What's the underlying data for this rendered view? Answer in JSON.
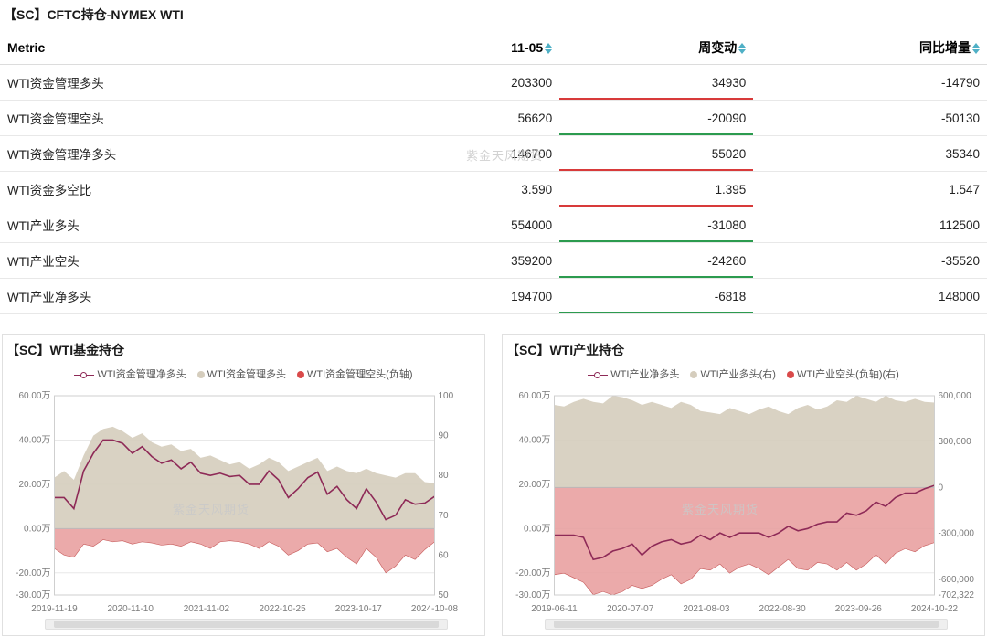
{
  "watermark_text": "紫金天风期货",
  "table": {
    "title": "【SC】CFTC持仓-NYMEX WTI",
    "columns": [
      "Metric",
      "11-05",
      "周变动",
      "同比增量"
    ],
    "sortable_cols": [
      false,
      true,
      true,
      true
    ],
    "rows": [
      {
        "metric": "WTI资金管理多头",
        "v1": "203300",
        "wk": "34930",
        "wk_dir": "red",
        "yoy": "-14790"
      },
      {
        "metric": "WTI资金管理空头",
        "v1": "56620",
        "wk": "-20090",
        "wk_dir": "green",
        "yoy": "-50130"
      },
      {
        "metric": "WTI资金管理净多头",
        "v1": "146700",
        "wk": "55020",
        "wk_dir": "red",
        "yoy": "35340"
      },
      {
        "metric": "WTI资金多空比",
        "v1": "3.590",
        "wk": "1.395",
        "wk_dir": "red",
        "yoy": "1.547"
      },
      {
        "metric": "WTI产业多头",
        "v1": "554000",
        "wk": "-31080",
        "wk_dir": "green",
        "yoy": "112500"
      },
      {
        "metric": "WTI产业空头",
        "v1": "359200",
        "wk": "-24260",
        "wk_dir": "green",
        "yoy": "-35520"
      },
      {
        "metric": "WTI产业净多头",
        "v1": "194700",
        "wk": "-6818",
        "wk_dir": "green",
        "yoy": "148000"
      }
    ]
  },
  "chart1": {
    "title": "【SC】WTI基金持仓",
    "type": "combo-line-area-dual-axis",
    "legend": [
      {
        "label": "WTI资金管理净多头",
        "style": "hollow-circle-line",
        "color": "#8e2a57"
      },
      {
        "label": "WTI资金管理多头",
        "style": "dot",
        "color": "#d5cdbd"
      },
      {
        "label": "WTI资金管理空头(负轴)",
        "style": "dot",
        "color": "#d94a4a"
      }
    ],
    "colors": {
      "net_line": "#8e2a57",
      "long_area": "#d5cdbd",
      "short_area": "#e79b9b",
      "short_area_edge": "#c65a5a",
      "grid": "#e8e8e8",
      "axis_text": "#7a7a7a",
      "bg": "#ffffff"
    },
    "y_left": {
      "min": -300000,
      "max": 600000,
      "ticks": [
        "-30.00万",
        "-20.00万",
        "0.00万",
        "20.00万",
        "40.00万",
        "60.00万"
      ],
      "tick_vals": [
        -300000,
        -200000,
        0,
        200000,
        400000,
        600000
      ]
    },
    "y_right": {
      "min": 50,
      "max": 100,
      "ticks": [
        "50",
        "60",
        "70",
        "80",
        "90",
        "100"
      ],
      "tick_vals": [
        50,
        60,
        70,
        80,
        90,
        100
      ]
    },
    "x_labels": [
      "2019-11-19",
      "2020-11-10",
      "2021-11-02",
      "2022-10-25",
      "2023-10-17",
      "2024-10-08"
    ],
    "series_long_area_yleft": [
      230000,
      260000,
      220000,
      330000,
      420000,
      450000,
      460000,
      440000,
      410000,
      430000,
      390000,
      370000,
      380000,
      350000,
      360000,
      320000,
      330000,
      310000,
      290000,
      300000,
      270000,
      290000,
      320000,
      300000,
      260000,
      280000,
      300000,
      320000,
      260000,
      280000,
      260000,
      250000,
      270000,
      250000,
      240000,
      230000,
      250000,
      250000,
      210000,
      205000
    ],
    "series_short_area_yleft": [
      -90000,
      -120000,
      -130000,
      -70000,
      -80000,
      -50000,
      -60000,
      -55000,
      -70000,
      -60000,
      -65000,
      -75000,
      -70000,
      -80000,
      -60000,
      -70000,
      -90000,
      -60000,
      -55000,
      -60000,
      -70000,
      -90000,
      -60000,
      -80000,
      -120000,
      -100000,
      -70000,
      -65000,
      -105000,
      -90000,
      -130000,
      -160000,
      -90000,
      -130000,
      -200000,
      -170000,
      -120000,
      -140000,
      -95000,
      -60000
    ],
    "series_net_line_yleft": [
      140000,
      140000,
      90000,
      260000,
      340000,
      400000,
      400000,
      385000,
      340000,
      370000,
      325000,
      295000,
      310000,
      270000,
      300000,
      250000,
      240000,
      250000,
      235000,
      240000,
      200000,
      200000,
      260000,
      220000,
      140000,
      180000,
      230000,
      255000,
      155000,
      190000,
      130000,
      90000,
      180000,
      120000,
      40000,
      60000,
      130000,
      110000,
      115000,
      145000
    ],
    "line_width": 1.6,
    "label_fontsize": 10
  },
  "chart2": {
    "title": "【SC】WTI产业持仓",
    "type": "combo-line-area-dual-axis",
    "legend": [
      {
        "label": "WTI产业净多头",
        "style": "hollow-circle-line",
        "color": "#8e2a57"
      },
      {
        "label": "WTI产业多头(右)",
        "style": "dot",
        "color": "#d5cdbd"
      },
      {
        "label": "WTI产业空头(负轴)(右)",
        "style": "dot",
        "color": "#d94a4a"
      }
    ],
    "colors": {
      "net_line": "#8e2a57",
      "long_area": "#d5cdbd",
      "short_area": "#e79b9b",
      "short_area_edge": "#c65a5a",
      "grid": "#e8e8e8",
      "axis_text": "#7a7a7a",
      "bg": "#ffffff"
    },
    "y_left": {
      "min": -300000,
      "max": 600000,
      "ticks": [
        "-30.00万",
        "-20.00万",
        "0.00万",
        "20.00万",
        "40.00万",
        "60.00万"
      ],
      "tick_vals": [
        -300000,
        -200000,
        0,
        200000,
        400000,
        600000
      ]
    },
    "y_right": {
      "min": -702322,
      "max": 600000,
      "ticks": [
        "-702,322",
        "-600,000",
        "-300,000",
        "0",
        "300,000",
        "600,000"
      ],
      "tick_vals": [
        -702322,
        -600000,
        -300000,
        0,
        300000,
        600000
      ]
    },
    "x_labels": [
      "2019-06-11",
      "2020-07-07",
      "2021-08-03",
      "2022-08-30",
      "2023-09-26",
      "2024-10-22"
    ],
    "series_long_area_yright": [
      540000,
      530000,
      560000,
      580000,
      560000,
      550000,
      600000,
      590000,
      570000,
      540000,
      560000,
      540000,
      520000,
      560000,
      540000,
      500000,
      490000,
      480000,
      520000,
      500000,
      480000,
      510000,
      530000,
      500000,
      480000,
      520000,
      540000,
      510000,
      530000,
      570000,
      560000,
      600000,
      580000,
      560000,
      600000,
      570000,
      560000,
      580000,
      560000,
      555000
    ],
    "series_short_area_yright": [
      -570000,
      -560000,
      -590000,
      -620000,
      -700000,
      -680000,
      -702000,
      -680000,
      -640000,
      -660000,
      -640000,
      -600000,
      -570000,
      -630000,
      -600000,
      -530000,
      -540000,
      -500000,
      -560000,
      -520000,
      -500000,
      -530000,
      -570000,
      -520000,
      -470000,
      -530000,
      -540000,
      -490000,
      -500000,
      -540000,
      -490000,
      -540000,
      -500000,
      -440000,
      -500000,
      -430000,
      -400000,
      -420000,
      -380000,
      -360000
    ],
    "series_net_line_yleft": [
      -30000,
      -30000,
      -30000,
      -40000,
      -140000,
      -130000,
      -102000,
      -90000,
      -70000,
      -120000,
      -80000,
      -60000,
      -50000,
      -70000,
      -60000,
      -30000,
      -50000,
      -20000,
      -40000,
      -20000,
      -20000,
      -20000,
      -40000,
      -20000,
      10000,
      -10000,
      0,
      20000,
      30000,
      30000,
      70000,
      60000,
      80000,
      120000,
      100000,
      140000,
      160000,
      160000,
      180000,
      195000
    ],
    "line_width": 1.6,
    "label_fontsize": 10
  }
}
